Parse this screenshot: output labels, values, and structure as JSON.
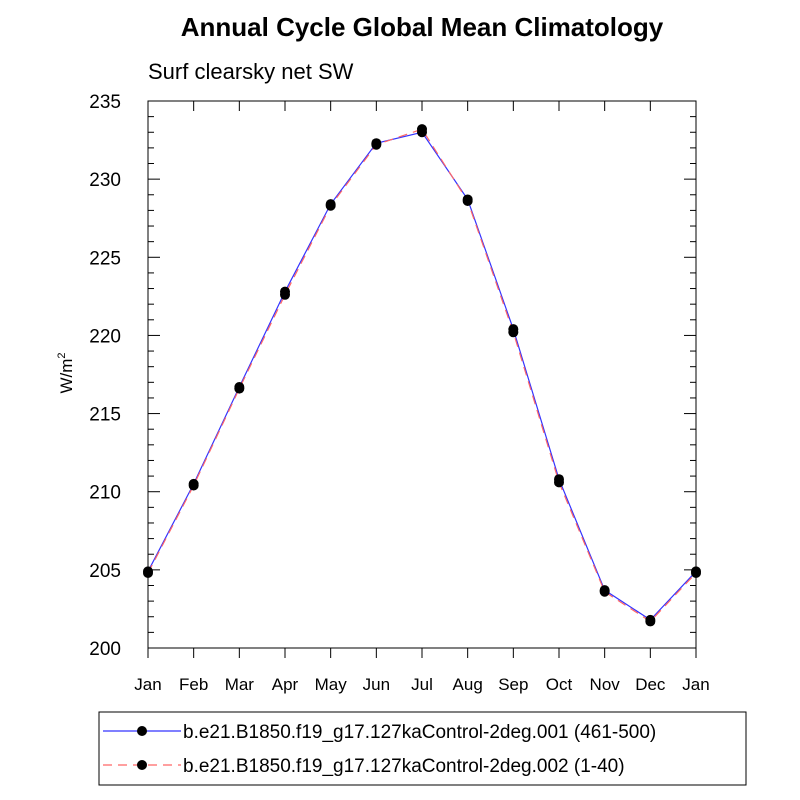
{
  "chart_data": {
    "type": "line",
    "title": "Annual Cycle Global Mean Climatology",
    "subtitle": "Surf clearsky net SW",
    "xlabel": "",
    "ylabel": "W/m",
    "ylabel_superscript": "2",
    "ylim": [
      200,
      235
    ],
    "yticks": [
      "200",
      "205",
      "210",
      "215",
      "220",
      "225",
      "230",
      "235"
    ],
    "categories": [
      "Jan",
      "Feb",
      "Mar",
      "Apr",
      "May",
      "Jun",
      "Jul",
      "Aug",
      "Sep",
      "Oct",
      "Nov",
      "Dec",
      "Jan"
    ],
    "grid": false,
    "legend_position": "bottom",
    "series": [
      {
        "name": "b.e21.B1850.f19_g17.127kaControl-2deg.001 (461-500)",
        "color": "#3333ff",
        "dash": "solid",
        "marker": "filled-circle",
        "values": [
          204.9,
          210.5,
          216.7,
          222.8,
          228.4,
          232.3,
          233.0,
          228.7,
          220.4,
          210.8,
          203.7,
          201.8,
          204.9
        ]
      },
      {
        "name": "b.e21.B1850.f19_g17.127kaControl-2deg.002 (1-40)",
        "color": "#ff6666",
        "dash": "dashed",
        "marker": "filled-circle",
        "values": [
          204.8,
          210.4,
          216.6,
          222.6,
          228.3,
          232.2,
          233.2,
          228.6,
          220.2,
          210.6,
          203.6,
          201.7,
          204.8
        ]
      }
    ]
  }
}
